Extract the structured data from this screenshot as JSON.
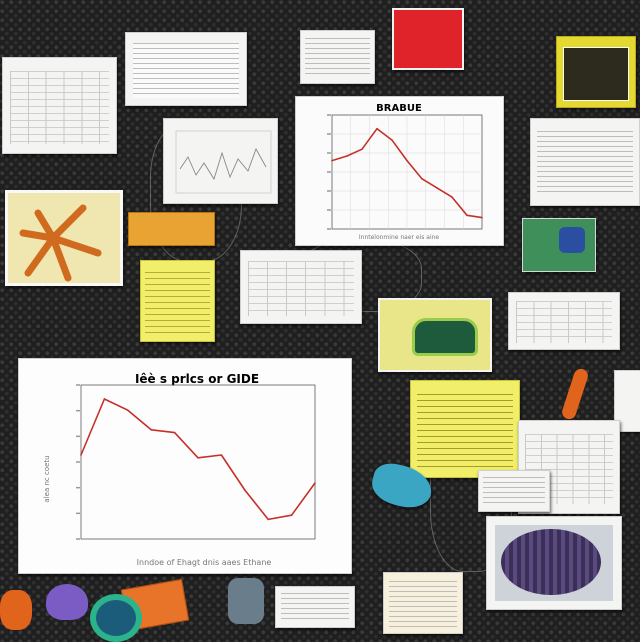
{
  "board": {
    "background_color": "#1f1f1f",
    "accent_colors": [
      "#c6302a",
      "#e4d92f",
      "#e8a332",
      "#3aa6c4",
      "#e0232a"
    ]
  },
  "large_chart": {
    "title": "Iêè s prlcs or GIDE",
    "xlabel": "Inndoe of Ehagt dnis aaes Ethane",
    "ylabel": "alea nc coetu"
  },
  "small_chart": {
    "title": "BRABUE",
    "xlabel": "Inntelonmine naer eis aine"
  },
  "chart_data": [
    {
      "type": "line",
      "x": [
        0,
        1,
        2,
        3,
        4,
        5,
        6,
        7,
        8,
        9,
        10
      ],
      "values": [
        60,
        100,
        92,
        78,
        76,
        58,
        60,
        35,
        14,
        17,
        40
      ],
      "ylim": [
        0,
        110
      ],
      "grid": false,
      "color": "#c6302a"
    },
    {
      "type": "line",
      "x": [
        0,
        1,
        2,
        3,
        4,
        5,
        6,
        7,
        8,
        9,
        10
      ],
      "values": [
        60,
        64,
        70,
        88,
        78,
        60,
        44,
        36,
        28,
        12,
        10
      ],
      "ylim": [
        0,
        100
      ],
      "grid": true,
      "color": "#c6302a"
    }
  ]
}
